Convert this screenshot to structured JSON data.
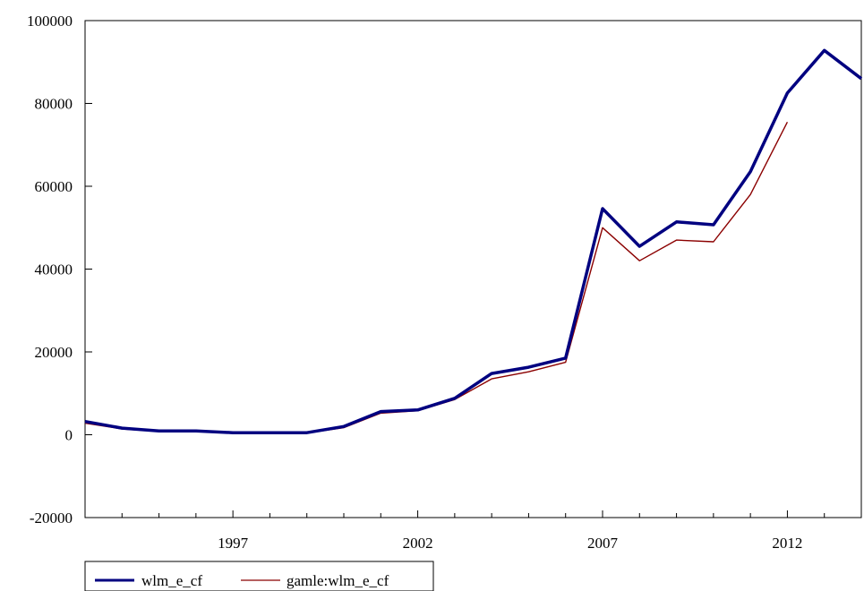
{
  "chart_data": {
    "type": "line",
    "xlim": [
      1993,
      2014
    ],
    "ylim": [
      -20000,
      100000
    ],
    "yticks": [
      -20000,
      0,
      20000,
      40000,
      60000,
      80000,
      100000
    ],
    "ytick_labels": [
      "-20000",
      "0",
      "20000",
      "40000",
      "60000",
      "80000",
      "100000"
    ],
    "xticks": [
      1997,
      2002,
      2007,
      2012
    ],
    "xtick_labels": [
      "1997",
      "2002",
      "2007",
      "2012"
    ],
    "grid": false,
    "legend_position": "bottom-left",
    "series": [
      {
        "name": "wlm_e_cf",
        "color": "#000080",
        "x": [
          1993,
          1994,
          1995,
          1996,
          1997,
          1998,
          1999,
          2000,
          2001,
          2002,
          2003,
          2004,
          2005,
          2006,
          2007,
          2008,
          2009,
          2010,
          2011,
          2012,
          2013,
          2014
        ],
        "values": [
          3200,
          1600,
          900,
          900,
          500,
          500,
          500,
          2000,
          5600,
          6000,
          8800,
          14800,
          16300,
          18500,
          54600,
          45500,
          51400,
          50700,
          63500,
          82500,
          92800,
          86000
        ]
      },
      {
        "name": "gamle:wlm_e_cf",
        "color": "#8b0000",
        "x": [
          1993,
          1994,
          1995,
          1996,
          1997,
          1998,
          1999,
          2000,
          2001,
          2002,
          2003,
          2004,
          2005,
          2006,
          2007,
          2008,
          2009,
          2010,
          2011,
          2012
        ],
        "values": [
          2800,
          1400,
          800,
          800,
          400,
          400,
          400,
          1700,
          5200,
          5800,
          8500,
          13500,
          15200,
          17500,
          50000,
          42000,
          47000,
          46600,
          58000,
          75500
        ]
      }
    ]
  }
}
